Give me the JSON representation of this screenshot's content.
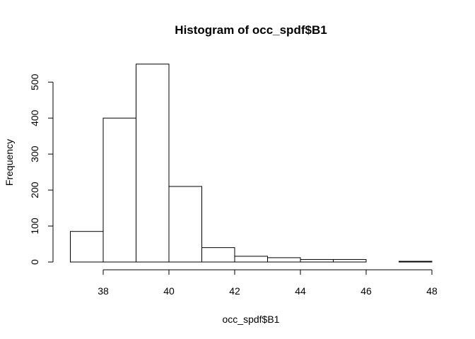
{
  "chart_data": {
    "type": "bar",
    "title": "Histogram of occ_spdf$B1",
    "xlabel": "occ_spdf$B1",
    "ylabel": "Frequency",
    "bins": [
      {
        "x0": 37,
        "x1": 38,
        "count": 85
      },
      {
        "x0": 38,
        "x1": 39,
        "count": 400
      },
      {
        "x0": 39,
        "x1": 40,
        "count": 550
      },
      {
        "x0": 40,
        "x1": 41,
        "count": 210
      },
      {
        "x0": 41,
        "x1": 42,
        "count": 40
      },
      {
        "x0": 42,
        "x1": 43,
        "count": 16
      },
      {
        "x0": 43,
        "x1": 44,
        "count": 12
      },
      {
        "x0": 44,
        "x1": 45,
        "count": 7
      },
      {
        "x0": 45,
        "x1": 46,
        "count": 7
      },
      {
        "x0": 46,
        "x1": 47,
        "count": 0
      },
      {
        "x0": 47,
        "x1": 48,
        "count": 2
      }
    ],
    "xlim": [
      37,
      48
    ],
    "ylim": [
      0,
      550
    ],
    "x_ticks": [
      38,
      40,
      42,
      44,
      46,
      48
    ],
    "y_ticks": [
      0,
      100,
      200,
      300,
      400,
      500
    ],
    "grid": false,
    "bar_fill": "#ffffff",
    "bar_stroke": "#000000"
  }
}
